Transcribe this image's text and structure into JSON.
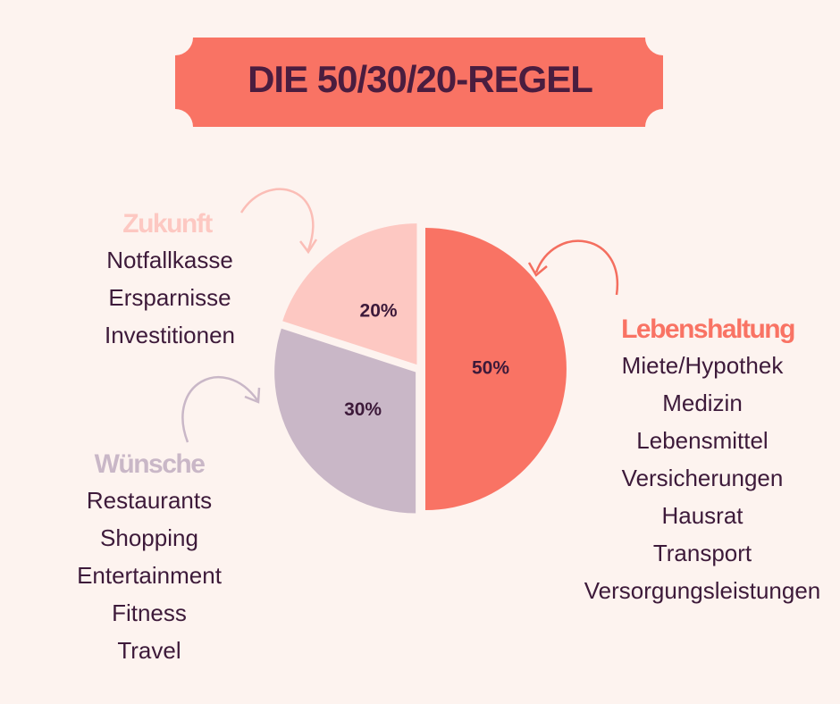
{
  "chart_data": {
    "type": "pie",
    "title": "DIE 50/30/20-REGEL",
    "categories": [
      "Lebenshaltung",
      "Wünsche",
      "Zukunft"
    ],
    "values": [
      50,
      30,
      20
    ],
    "value_labels": [
      "50%",
      "30%",
      "20%"
    ],
    "colors": [
      "#f97364",
      "#c9b7c7",
      "#fdc8c2"
    ],
    "items": [
      [
        "Miete/Hypothek",
        "Medizin",
        "Lebensmittel",
        "Versicherungen",
        "Hausrat",
        "Transport",
        "Versorgungsleistungen"
      ],
      [
        "Restaurants",
        "Shopping",
        "Entertainment",
        "Fitness",
        "Travel"
      ],
      [
        "Notfallkasse",
        "Ersparnisse",
        "Investitionen"
      ]
    ]
  }
}
